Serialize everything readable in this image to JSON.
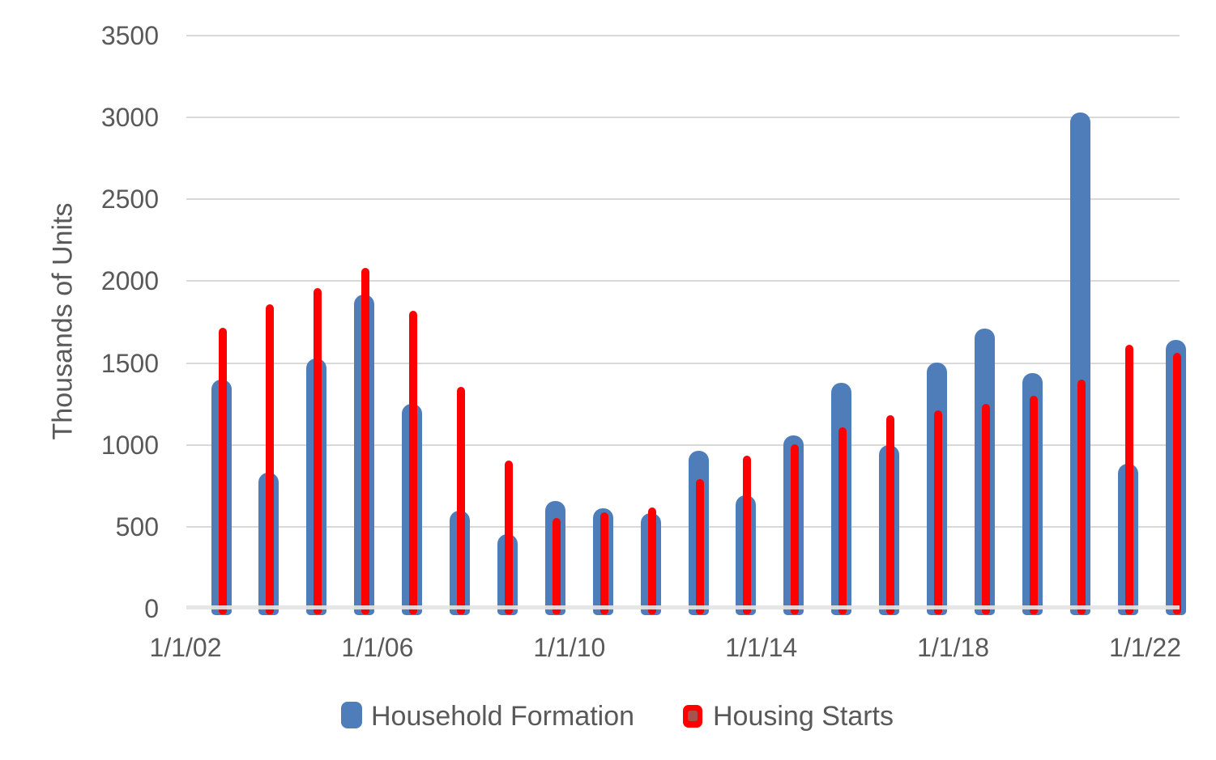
{
  "chart_data": {
    "type": "bar",
    "title": "",
    "xlabel": "",
    "ylabel": "Thousands of Units",
    "ylim": [
      0,
      3500
    ],
    "ytick_step": 500,
    "yticks": [
      0,
      500,
      1000,
      1500,
      2000,
      2500,
      3000,
      3500
    ],
    "xtick_labels": [
      "1/1/02",
      "1/1/06",
      "1/1/10",
      "1/1/14",
      "1/1/18",
      "1/1/22"
    ],
    "xtick_interval_years": 4,
    "grid": true,
    "legend_position": "bottom",
    "categories": [
      2002,
      2003,
      2004,
      2005,
      2006,
      2007,
      2008,
      2009,
      2010,
      2011,
      2012,
      2013,
      2014,
      2015,
      2016,
      2017,
      2018,
      2019,
      2020,
      2021,
      2022
    ],
    "series": [
      {
        "name": "Household Formation",
        "color": "#4e7dba",
        "values": [
          1400,
          830,
          1530,
          1920,
          1250,
          600,
          455,
          660,
          615,
          585,
          965,
          690,
          1060,
          1380,
          1000,
          1505,
          1710,
          1440,
          3030,
          885,
          1640
        ]
      },
      {
        "name": "Housing Starts",
        "color": "#ff0000",
        "values": [
          1715,
          1860,
          1960,
          2080,
          1820,
          1355,
          905,
          555,
          590,
          620,
          790,
          935,
          1005,
          1110,
          1180,
          1210,
          1250,
          1300,
          1400,
          1610,
          1560
        ]
      }
    ]
  },
  "colors": {
    "household_formation": "#4e7dba",
    "housing_starts": "#ff0000",
    "legend_red_inner": "#a8524e",
    "gridline": "#d9d9d9",
    "axis_text": "#595959",
    "background": "#ffffff"
  },
  "legend": {
    "items": [
      {
        "label": "Household Formation",
        "swatch": "blue-rounded-square"
      },
      {
        "label": "Housing Starts",
        "swatch": "red-rounded-square"
      }
    ]
  },
  "axes": {
    "y_title": "Thousands of Units"
  }
}
